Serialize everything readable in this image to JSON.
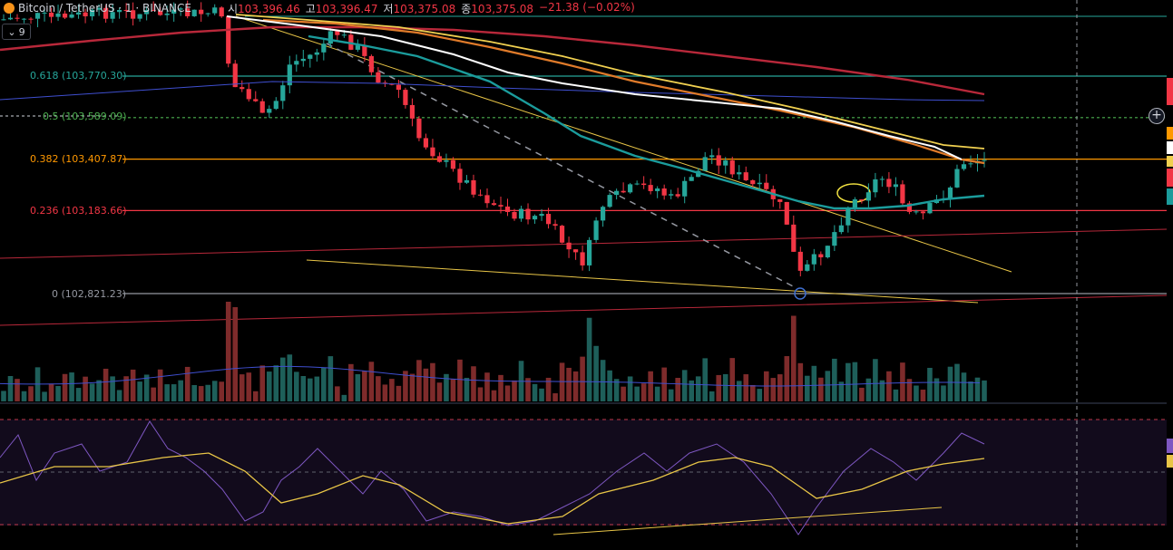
{
  "header": {
    "symbol": "Bitcoin / TetherUS · 1 · BINANCE",
    "open_label": "시",
    "open": "103,396.46",
    "high_label": "고",
    "high": "103,396.47",
    "low_label": "저",
    "low": "103,375.08",
    "close_label": "종",
    "close": "103,375.08",
    "change": "−21.38 (−0.02%)"
  },
  "collapse_count": "9",
  "fib_levels": [
    {
      "label": "0.618 (103,770.30)",
      "value": 103770.3,
      "color": "#26a69a"
    },
    {
      "label": "0.5 (103,589.09)",
      "value": 103589.09,
      "color": "#4caf50"
    },
    {
      "label": "0.382 (103,407.87)",
      "value": 103407.87,
      "color": "#ff9800"
    },
    {
      "label": "0.236 (103,183.66)",
      "value": 103183.66,
      "color": "#f23645"
    },
    {
      "label": "0 (102,821.23)",
      "value": 102821.23,
      "color": "#9598a1"
    }
  ],
  "colors": {
    "up": "#26a69a",
    "down": "#f23645",
    "volume_up": "#1e5f5a",
    "volume_down": "#7e2b2b",
    "ema_teal": "#1b9c9c",
    "ma_white": "#ffffff",
    "ma_yellow": "#f0d050",
    "ma_orange": "#e07b2a",
    "ma_red": "#b8283a",
    "ma_blue": "#3f4fd0",
    "rsi": "#7e57c2",
    "rsi_ma": "#e8c547"
  },
  "chart_data": {
    "type": "candlestick",
    "ylim": [
      102790,
      104150
    ],
    "candles_count": 145
  }
}
